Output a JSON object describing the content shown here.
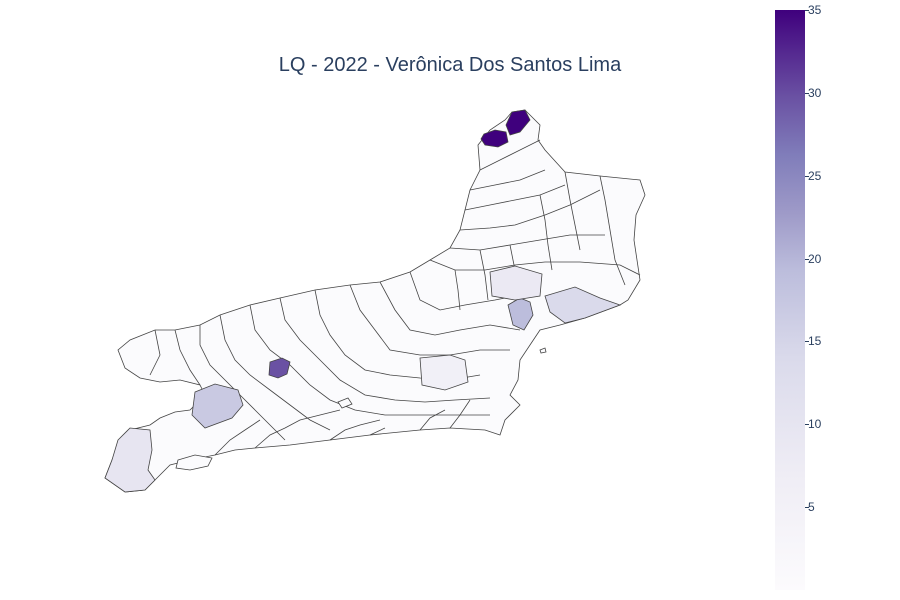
{
  "title": "LQ - 2022 - Verônica Dos Santos Lima",
  "colorbar": {
    "min": 0,
    "max": 35,
    "ticks": [
      "5",
      "10",
      "15",
      "20",
      "25",
      "30",
      "35"
    ],
    "colors": [
      "#fcfbfd",
      "#efedf5",
      "#dadaeb",
      "#bcbddc",
      "#9e9ac8",
      "#807dba",
      "#6a51a3",
      "#54278f",
      "#3f007d"
    ]
  },
  "chart_data": {
    "type": "heatmap",
    "subtype": "choropleth",
    "colorscale": "Purples",
    "range": [
      0,
      35
    ],
    "highlighted_regions": [
      {
        "location": "far-north-tip",
        "value": 35
      },
      {
        "location": "far-north-adjacent",
        "value": 33
      },
      {
        "location": "central-west-small",
        "value": 25
      },
      {
        "location": "east-interior",
        "value": 15
      },
      {
        "location": "east-coast",
        "value": 12
      },
      {
        "location": "southwest-interior",
        "value": 14
      },
      {
        "location": "southwest-coast",
        "value": 7
      },
      {
        "location": "east-north-interior",
        "value": 6
      }
    ]
  }
}
